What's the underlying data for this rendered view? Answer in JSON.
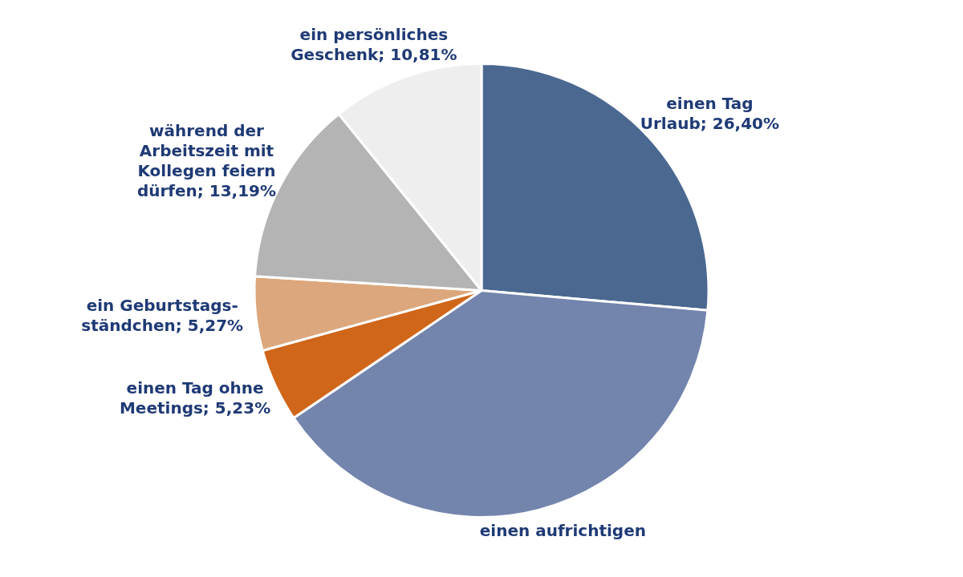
{
  "chart_data": {
    "type": "pie",
    "categories": [
      "einen Tag Urlaub",
      "einen aufrichtigen",
      "einen Tag ohne Meetings",
      "ein Geburtstags-ständchen",
      "während der Arbeitszeit mit Kollegen feiern dürfen",
      "ein persönliches Geschenk"
    ],
    "values": [
      26.4,
      39.1,
      5.23,
      5.27,
      13.19,
      10.81
    ],
    "colors": [
      "#4a6890",
      "#7385ad",
      "#d0661a",
      "#dca77c",
      "#b4b4b4",
      "#eeeeee"
    ],
    "value_labels": [
      "26,40%",
      null,
      "5,23%",
      "5,27%",
      "13,19%",
      "10,81%"
    ]
  }
}
